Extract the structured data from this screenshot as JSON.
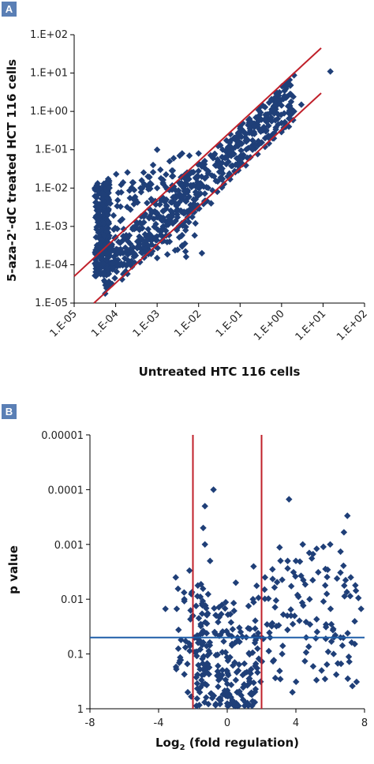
{
  "colors": {
    "marker": "#1f3f78",
    "red_line": "#c0202a",
    "blue_line": "#1f5fa8",
    "badge": "#5a7fb5"
  },
  "chart_data": [
    {
      "panel": "A",
      "type": "scatter",
      "marker": "diamond",
      "xlabel": "Untreated HTC 116 cells",
      "ylabel": "5-aza-2'-dC treated HCT 116 cells",
      "xscale": "log",
      "yscale": "log",
      "xlim": [
        1e-05,
        100.0
      ],
      "ylim": [
        1e-05,
        100.0
      ],
      "x_tick_labels": [
        "1.E-05",
        "1.E-04",
        "1.E-03",
        "1.E-02",
        "1.E-01",
        "1.E+00",
        "1.E+01",
        "1.E+02"
      ],
      "y_tick_labels": [
        "1.E-05",
        "1.E-04",
        "1.E-03",
        "1.E-02",
        "1.E-01",
        "1.E+00",
        "1.E+01",
        "1.E+02"
      ],
      "reference_lines": [
        {
          "name": "upper boundary",
          "from": [
            1e-05,
            5e-05
          ],
          "to": [
            9,
            45
          ]
        },
        {
          "name": "lower boundary",
          "from": [
            3e-05,
            1e-05
          ],
          "to": [
            9,
            3
          ]
        }
      ],
      "points": [
        [
          15.0,
          11.0
        ],
        [
          0.004,
          0.08
        ],
        [
          0.006,
          0.07
        ],
        [
          0.01,
          0.08
        ],
        [
          0.002,
          0.05
        ],
        [
          0.0012,
          0.03
        ],
        [
          0.0025,
          0.06
        ],
        [
          0.0008,
          0.04
        ],
        [
          0.001,
          0.1
        ],
        [
          0.0035,
          0.07
        ],
        [
          0.0004,
          0.01
        ],
        [
          0.0006,
          0.02
        ],
        [
          0.001,
          0.01
        ],
        [
          0.0003,
          0.005
        ],
        [
          0.0005,
          0.012
        ],
        [
          0.002,
          0.0004
        ],
        [
          0.003,
          0.0008
        ],
        [
          0.001,
          0.00015
        ],
        [
          0.012,
          0.0002
        ],
        [
          0.004,
          0.0003
        ],
        [
          0.005,
          0.008
        ],
        [
          0.02,
          0.004
        ],
        [
          0.05,
          0.02
        ],
        [
          0.1,
          0.05
        ],
        [
          0.2,
          0.1
        ],
        [
          0.5,
          0.2
        ],
        [
          1,
          0.5
        ],
        [
          2,
          1
        ],
        [
          3,
          1.5
        ],
        [
          1.5,
          0.4
        ]
      ]
    },
    {
      "panel": "B",
      "type": "scatter",
      "marker": "diamond",
      "xlabel": "Log2 (fold regulation)",
      "ylabel": "p value",
      "xlim": [
        -8,
        8
      ],
      "yscale": "log",
      "y_reversed": true,
      "ylim": [
        1,
        1e-05
      ],
      "x_tick_labels": [
        "-8",
        "-4",
        "0",
        "4",
        "8"
      ],
      "y_tick_labels": [
        "0.00001",
        "0.0001",
        "0.001",
        "0.01",
        "0.1",
        "1"
      ],
      "vertical_lines": [
        -2,
        2
      ],
      "horizontal_line": 0.05,
      "points": [
        [
          -0.8,
          0.0001
        ],
        [
          -1.3,
          0.0002
        ],
        [
          -1.4,
          0.0005
        ],
        [
          -1.3,
          0.001
        ],
        [
          -1.0,
          0.002
        ],
        [
          -3.6,
          0.015
        ],
        [
          -3.0,
          0.004
        ],
        [
          -2.2,
          0.003
        ],
        [
          -2.5,
          0.01
        ],
        [
          -2.0,
          0.02
        ],
        [
          -1.8,
          0.05
        ],
        [
          -1.5,
          0.3
        ],
        [
          -2.1,
          0.6
        ],
        [
          -2.3,
          0.5
        ],
        [
          -1.6,
          0.5
        ],
        [
          -0.5,
          0.3
        ],
        [
          0,
          0.8
        ],
        [
          0.3,
          0.7
        ],
        [
          0.5,
          0.3
        ],
        [
          1.0,
          0.15
        ],
        [
          0.6,
          0.05
        ],
        [
          0.5,
          0.005
        ],
        [
          1.5,
          0.01
        ],
        [
          2.2,
          0.004
        ],
        [
          2.5,
          0.05
        ],
        [
          2.0,
          0.05
        ],
        [
          3.0,
          0.03
        ],
        [
          3.5,
          0.02
        ],
        [
          3.2,
          0.1
        ],
        [
          3.8,
          0.5
        ],
        [
          4.0,
          0.002
        ],
        [
          3.6,
          0.00015
        ],
        [
          4.4,
          0.001
        ],
        [
          5.0,
          0.0015
        ],
        [
          6.0,
          0.001
        ],
        [
          6.8,
          0.0006
        ],
        [
          7.0,
          0.0003
        ],
        [
          7.5,
          0.007
        ],
        [
          7.8,
          0.015
        ],
        [
          5.5,
          0.2
        ],
        [
          6.2,
          0.1
        ],
        [
          5.2,
          0.3
        ],
        [
          6.6,
          0.05
        ],
        [
          4.6,
          0.05
        ],
        [
          7.2,
          0.004
        ],
        [
          5.8,
          0.008
        ],
        [
          4.8,
          0.01
        ]
      ]
    }
  ]
}
